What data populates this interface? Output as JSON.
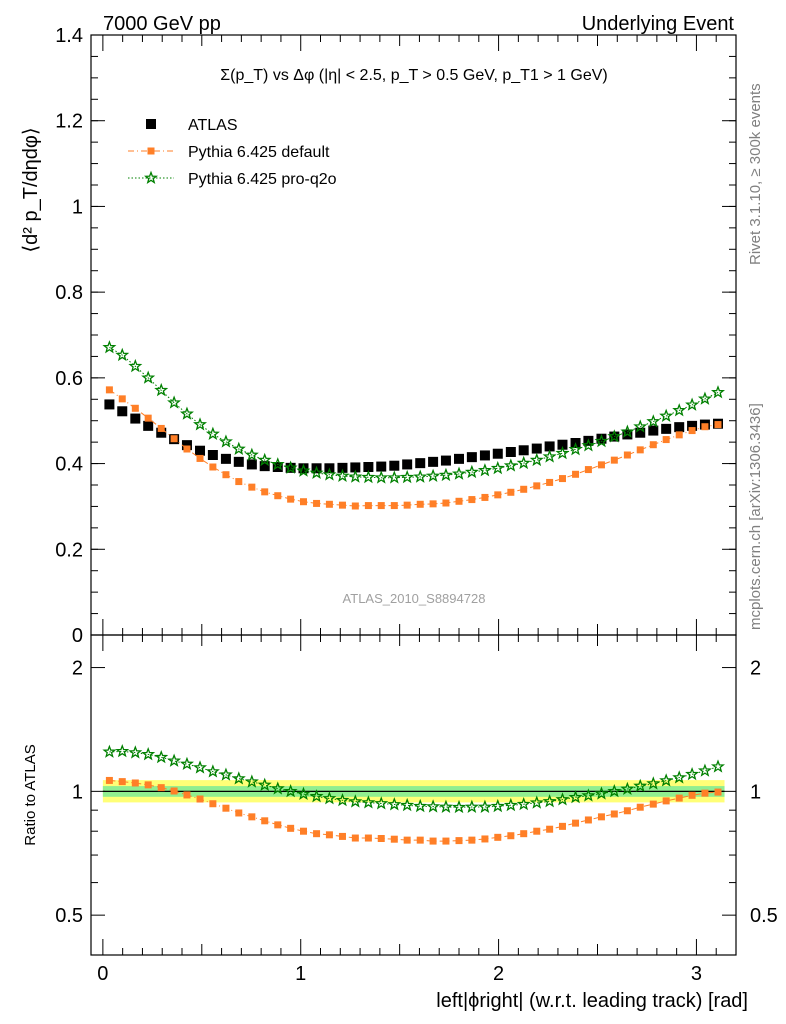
{
  "header": {
    "left": "7000 GeV pp",
    "right": "Underlying Event"
  },
  "side_labels": {
    "rivet": "Rivet 3.1.10, ≥ 300k events",
    "mcplots": "mcplots.cern.ch [arXiv:1306.3436]"
  },
  "chart_data": [
    {
      "type": "scatter",
      "title": "Σ(p_T) vs Δφ (|η| < 2.5, p_T > 0.5 GeV, p_T1 > 1 GeV)",
      "ylabel": "⟨d² p_T/dηdφ⟩",
      "watermark": "ATLAS_2010_S8894728",
      "ylim": [
        0,
        1.4
      ],
      "xlim": [
        -0.06,
        3.2
      ],
      "yticks": [
        "0",
        "0.2",
        "0.4",
        "0.6",
        "0.8",
        "1",
        "1.2",
        "1.4"
      ],
      "legend_position": "top-left",
      "x": [
        0.033,
        0.098,
        0.164,
        0.229,
        0.295,
        0.36,
        0.425,
        0.491,
        0.556,
        0.622,
        0.687,
        0.753,
        0.818,
        0.884,
        0.949,
        1.014,
        1.08,
        1.145,
        1.211,
        1.276,
        1.342,
        1.407,
        1.473,
        1.538,
        1.604,
        1.669,
        1.734,
        1.8,
        1.865,
        1.931,
        1.996,
        2.062,
        2.127,
        2.193,
        2.258,
        2.323,
        2.389,
        2.454,
        2.52,
        2.585,
        2.651,
        2.716,
        2.782,
        2.847,
        2.913,
        2.978,
        3.043,
        3.109
      ],
      "series": [
        {
          "name": "ATLAS",
          "color": "#000000",
          "marker": "square",
          "values": [
            0.538,
            0.522,
            0.505,
            0.488,
            0.472,
            0.457,
            0.443,
            0.43,
            0.42,
            0.411,
            0.404,
            0.398,
            0.394,
            0.392,
            0.39,
            0.389,
            0.389,
            0.389,
            0.39,
            0.391,
            0.392,
            0.393,
            0.395,
            0.398,
            0.401,
            0.404,
            0.407,
            0.411,
            0.415,
            0.419,
            0.423,
            0.427,
            0.431,
            0.435,
            0.44,
            0.444,
            0.448,
            0.453,
            0.458,
            0.463,
            0.468,
            0.472,
            0.477,
            0.481,
            0.485,
            0.488,
            0.491,
            0.493
          ]
        },
        {
          "name": "Pythia 6.425 default",
          "color": "#ff7f27",
          "marker": "square",
          "values": [
            0.572,
            0.551,
            0.529,
            0.506,
            0.482,
            0.458,
            0.434,
            0.412,
            0.392,
            0.374,
            0.358,
            0.345,
            0.334,
            0.325,
            0.317,
            0.311,
            0.307,
            0.305,
            0.303,
            0.301,
            0.302,
            0.302,
            0.302,
            0.303,
            0.305,
            0.306,
            0.308,
            0.312,
            0.316,
            0.321,
            0.327,
            0.333,
            0.34,
            0.348,
            0.356,
            0.365,
            0.375,
            0.386,
            0.397,
            0.408,
            0.42,
            0.432,
            0.444,
            0.456,
            0.467,
            0.477,
            0.486,
            0.491
          ]
        },
        {
          "name": "Pythia 6.425 pro-q2o",
          "color": "#008000",
          "marker": "star",
          "values": [
            0.671,
            0.653,
            0.627,
            0.6,
            0.571,
            0.542,
            0.516,
            0.491,
            0.469,
            0.451,
            0.434,
            0.42,
            0.408,
            0.398,
            0.39,
            0.383,
            0.378,
            0.374,
            0.371,
            0.369,
            0.368,
            0.367,
            0.367,
            0.368,
            0.369,
            0.371,
            0.373,
            0.376,
            0.38,
            0.384,
            0.389,
            0.395,
            0.401,
            0.408,
            0.416,
            0.424,
            0.433,
            0.442,
            0.452,
            0.463,
            0.474,
            0.486,
            0.498,
            0.511,
            0.524,
            0.537,
            0.551,
            0.566
          ]
        }
      ]
    },
    {
      "type": "scatter",
      "ylabel": "Ratio to ATLAS",
      "xlabel": "left|ϕright| (w.r.t. leading track) [rad]",
      "log_y": true,
      "ylim": [
        0.4,
        2.4
      ],
      "xlim": [
        -0.06,
        3.2
      ],
      "yticks": [
        "0.5",
        "1",
        "2"
      ],
      "xticks": [
        "0",
        "1",
        "2",
        "3"
      ],
      "band_inner": [
        0.97,
        1.03
      ],
      "band_outer": [
        0.94,
        1.065
      ],
      "band_inner_color": "#90ee90",
      "band_outer_color": "#ffff77",
      "series": [
        {
          "name": "Pythia 6.425 default",
          "color": "#ff7f27",
          "marker": "square",
          "values": [
            1.063,
            1.056,
            1.048,
            1.037,
            1.021,
            1.002,
            0.98,
            0.958,
            0.933,
            0.91,
            0.886,
            0.867,
            0.848,
            0.829,
            0.813,
            0.8,
            0.789,
            0.784,
            0.777,
            0.77,
            0.77,
            0.768,
            0.765,
            0.761,
            0.761,
            0.757,
            0.757,
            0.759,
            0.761,
            0.766,
            0.773,
            0.78,
            0.789,
            0.8,
            0.809,
            0.822,
            0.837,
            0.852,
            0.867,
            0.881,
            0.897,
            0.915,
            0.931,
            0.948,
            0.963,
            0.978,
            0.99,
            0.996
          ]
        },
        {
          "name": "Pythia 6.425 pro-q2o",
          "color": "#008000",
          "marker": "star",
          "values": [
            1.247,
            1.251,
            1.242,
            1.23,
            1.21,
            1.186,
            1.165,
            1.142,
            1.117,
            1.097,
            1.074,
            1.055,
            1.036,
            1.015,
            1.0,
            0.985,
            0.972,
            0.961,
            0.951,
            0.944,
            0.939,
            0.934,
            0.929,
            0.925,
            0.92,
            0.918,
            0.916,
            0.915,
            0.916,
            0.916,
            0.92,
            0.925,
            0.93,
            0.938,
            0.945,
            0.955,
            0.967,
            0.976,
            0.987,
            1.0,
            1.013,
            1.03,
            1.044,
            1.062,
            1.08,
            1.1,
            1.122,
            1.148
          ]
        }
      ]
    }
  ]
}
